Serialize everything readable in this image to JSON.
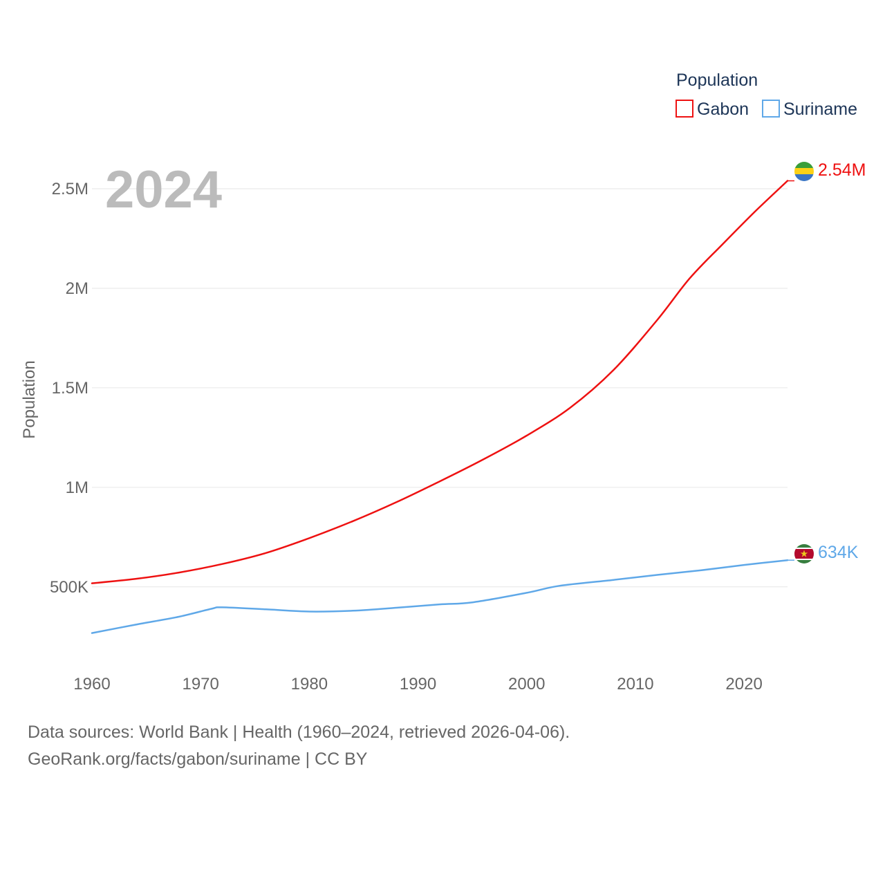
{
  "chart_data": {
    "type": "line",
    "title": "",
    "year_label": "2024",
    "xlabel": "",
    "ylabel": "Population",
    "xlim": [
      1960,
      2024
    ],
    "ylim": [
      270000,
      2580000
    ],
    "x_ticks": [
      1960,
      1970,
      1980,
      1990,
      2000,
      2010,
      2020
    ],
    "y_ticks": [
      {
        "value": 500000,
        "label": "500K"
      },
      {
        "value": 1000000,
        "label": "1M"
      },
      {
        "value": 1500000,
        "label": "1.5M"
      },
      {
        "value": 2000000,
        "label": "2M"
      },
      {
        "value": 2500000,
        "label": "2.5M"
      }
    ],
    "grid": true,
    "legend": {
      "title": "Population",
      "placement": "top-right"
    },
    "series": [
      {
        "name": "Gabon",
        "color": "#ee1111",
        "end_label": "2.54M",
        "flag": "gabon-flag-icon",
        "x": [
          1960,
          1964,
          1968,
          1972,
          1976,
          1980,
          1984,
          1988,
          1992,
          1996,
          2000,
          2004,
          2008,
          2012,
          2015,
          2018,
          2021,
          2024
        ],
        "values": [
          518000,
          540000,
          572000,
          615000,
          670000,
          745000,
          830000,
          925000,
          1030000,
          1140000,
          1260000,
          1400000,
          1590000,
          1840000,
          2050000,
          2220000,
          2385000,
          2540000
        ]
      },
      {
        "name": "Suriname",
        "color": "#5fa8e8",
        "end_label": "634K",
        "flag": "suriname-flag-icon",
        "x": [
          1960,
          1964,
          1968,
          1971,
          1972,
          1976,
          1980,
          1984,
          1988,
          1992,
          1995,
          2000,
          2003,
          2008,
          2012,
          2016,
          2020,
          2024
        ],
        "values": [
          268000,
          310000,
          350000,
          390000,
          397000,
          387000,
          376000,
          380000,
          395000,
          412000,
          422000,
          470000,
          505000,
          535000,
          560000,
          583000,
          610000,
          634000
        ]
      }
    ]
  },
  "footer": {
    "sources": "Data sources: World Bank | Health (1960–2024, retrieved 2026-04-06).",
    "link": "GeoRank.org/facts/gabon/suriname | CC BY"
  }
}
